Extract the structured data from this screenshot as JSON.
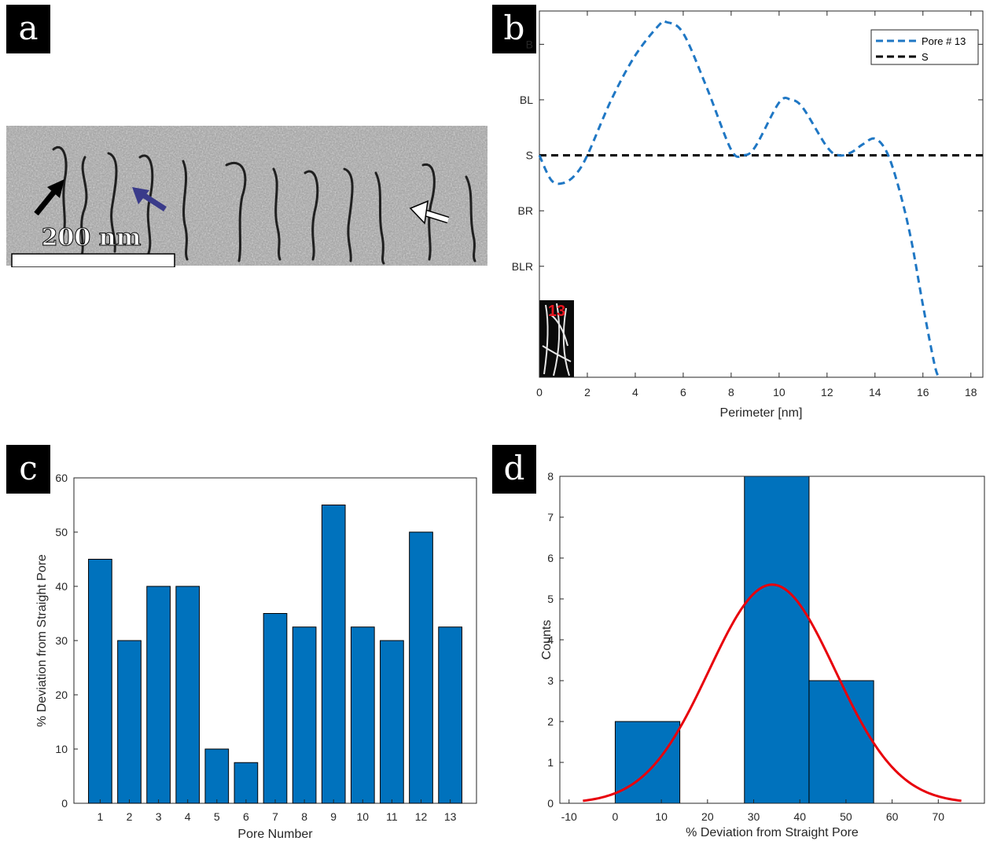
{
  "panels": {
    "a": {
      "tag": "a",
      "scale_bar": "200 nm"
    },
    "b": {
      "tag": "b"
    },
    "c": {
      "tag": "c"
    },
    "d": {
      "tag": "d"
    }
  },
  "chart_data": [
    {
      "id": "b",
      "type": "line",
      "xlabel": "Perimeter [nm]",
      "ylabel": "",
      "xlim": [
        0,
        18.5
      ],
      "xticks": [
        0,
        2,
        4,
        6,
        8,
        10,
        12,
        14,
        16,
        18
      ],
      "ylim": [
        -4,
        2.6
      ],
      "ytick_values": [
        2,
        1,
        0,
        -1,
        -2
      ],
      "ytick_labels": [
        "B",
        "BL",
        "S",
        "BR",
        "BLR"
      ],
      "legend_position": "top-right",
      "inset_label": "13",
      "colors": {
        "pore": "#1f77c4",
        "straight": "#000000"
      },
      "series": [
        {
          "name": "Pore # 13",
          "style": "dashed",
          "x": [
            0,
            0.5,
            1,
            1.5,
            2,
            3,
            4,
            5,
            5.3,
            6,
            7,
            8,
            8.5,
            9,
            10,
            10.5,
            11,
            12,
            12.5,
            13,
            13.5,
            14,
            14.5,
            15,
            15.5,
            16,
            16.5,
            16.7
          ],
          "y": [
            0,
            -0.45,
            -0.5,
            -0.35,
            0,
            1,
            1.8,
            2.35,
            2.4,
            2.2,
            1.2,
            0.1,
            0,
            0.15,
            0.95,
            1.0,
            0.85,
            0.15,
            0,
            0.05,
            0.2,
            0.3,
            0.05,
            -0.6,
            -1.5,
            -2.7,
            -3.8,
            -4.0
          ]
        },
        {
          "name": "S",
          "style": "dashed",
          "x": [
            0,
            18.5
          ],
          "y": [
            0,
            0
          ]
        }
      ]
    },
    {
      "id": "c",
      "type": "bar",
      "xlabel": "Pore Number",
      "ylabel": "% Deviation from Straight Pore",
      "categories": [
        "1",
        "2",
        "3",
        "4",
        "5",
        "6",
        "7",
        "8",
        "9",
        "10",
        "11",
        "12",
        "13"
      ],
      "values": [
        45,
        30,
        40,
        40,
        10,
        7.5,
        35,
        32.5,
        55,
        32.5,
        30,
        50,
        32.5
      ],
      "ylim": [
        0,
        60
      ],
      "yticks": [
        0,
        10,
        20,
        30,
        40,
        50,
        60
      ],
      "colors": {
        "bar": "#0072bd"
      }
    },
    {
      "id": "d",
      "type": "bar",
      "subtype": "histogram with normal fit",
      "xlabel": "% Deviation from Straight Pore",
      "ylabel": "Counts",
      "xlim": [
        -12,
        80
      ],
      "xticks": [
        -10,
        0,
        10,
        20,
        30,
        40,
        50,
        60,
        70
      ],
      "ylim": [
        0,
        8
      ],
      "yticks": [
        0,
        1,
        2,
        3,
        4,
        5,
        6,
        7,
        8
      ],
      "bins": [
        {
          "start": 0,
          "end": 14,
          "count": 2
        },
        {
          "start": 14,
          "end": 28,
          "count": 0
        },
        {
          "start": 28,
          "end": 42,
          "count": 8
        },
        {
          "start": 42,
          "end": 56,
          "count": 3
        }
      ],
      "fit": {
        "mean": 34,
        "std": 13.7,
        "peak": 5.35,
        "x_range": [
          -7,
          75
        ]
      },
      "colors": {
        "bar": "#0072bd",
        "fit": "#e8000b"
      }
    }
  ]
}
